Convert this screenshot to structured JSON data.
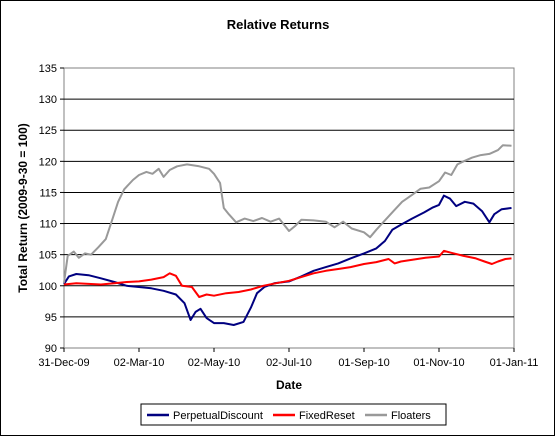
{
  "chart_data": {
    "type": "line",
    "title": "Relative Returns",
    "xlabel": "Date",
    "ylabel": "Total Return (2009-9-30 = 100)",
    "ylim": [
      90,
      135
    ],
    "yticks": [
      90,
      95,
      100,
      105,
      110,
      115,
      120,
      125,
      130,
      135
    ],
    "xlim": [
      "2009-12-31",
      "2011-01-01"
    ],
    "xticks": [
      "31-Dec-09",
      "02-Mar-10",
      "02-May-10",
      "02-Jul-10",
      "01-Sep-10",
      "01-Nov-10",
      "01-Jan-11"
    ],
    "xtick_dates": [
      "2009-12-31",
      "2010-03-02",
      "2010-05-02",
      "2010-07-02",
      "2010-09-01",
      "2010-11-01",
      "2011-01-01"
    ],
    "grid": "horizontal",
    "legend": "bottom",
    "series": [
      {
        "name": "PerpetualDiscount",
        "color": "#000080",
        "points": [
          [
            "2009-12-31",
            100.3
          ],
          [
            "2010-01-04",
            101.5
          ],
          [
            "2010-01-10",
            101.9
          ],
          [
            "2010-01-20",
            101.7
          ],
          [
            "2010-01-30",
            101.2
          ],
          [
            "2010-02-10",
            100.6
          ],
          [
            "2010-02-20",
            100.0
          ],
          [
            "2010-03-02",
            99.8
          ],
          [
            "2010-03-12",
            99.6
          ],
          [
            "2010-03-22",
            99.2
          ],
          [
            "2010-04-01",
            98.6
          ],
          [
            "2010-04-08",
            97.2
          ],
          [
            "2010-04-13",
            94.5
          ],
          [
            "2010-04-17",
            95.8
          ],
          [
            "2010-04-21",
            96.3
          ],
          [
            "2010-04-26",
            94.8
          ],
          [
            "2010-05-02",
            94.0
          ],
          [
            "2010-05-10",
            94.0
          ],
          [
            "2010-05-18",
            93.7
          ],
          [
            "2010-05-26",
            94.2
          ],
          [
            "2010-06-01",
            96.5
          ],
          [
            "2010-06-06",
            98.8
          ],
          [
            "2010-06-12",
            99.8
          ],
          [
            "2010-06-20",
            100.4
          ],
          [
            "2010-07-02",
            100.7
          ],
          [
            "2010-07-12",
            101.5
          ],
          [
            "2010-07-22",
            102.4
          ],
          [
            "2010-08-01",
            103.0
          ],
          [
            "2010-08-11",
            103.6
          ],
          [
            "2010-08-21",
            104.4
          ],
          [
            "2010-09-01",
            105.2
          ],
          [
            "2010-09-11",
            106.0
          ],
          [
            "2010-09-18",
            107.2
          ],
          [
            "2010-09-24",
            109.0
          ],
          [
            "2010-10-01",
            109.8
          ],
          [
            "2010-10-10",
            110.8
          ],
          [
            "2010-10-20",
            111.8
          ],
          [
            "2010-10-27",
            112.6
          ],
          [
            "2010-11-01",
            113.0
          ],
          [
            "2010-11-05",
            114.5
          ],
          [
            "2010-11-10",
            114.0
          ],
          [
            "2010-11-15",
            112.8
          ],
          [
            "2010-11-22",
            113.5
          ],
          [
            "2010-11-29",
            113.2
          ],
          [
            "2010-12-06",
            112.0
          ],
          [
            "2010-12-12",
            110.2
          ],
          [
            "2010-12-16",
            111.5
          ],
          [
            "2010-12-22",
            112.3
          ],
          [
            "2010-12-30",
            112.5
          ]
        ]
      },
      {
        "name": "FixedReset",
        "color": "#ff0000",
        "points": [
          [
            "2009-12-31",
            100.2
          ],
          [
            "2010-01-10",
            100.4
          ],
          [
            "2010-01-20",
            100.3
          ],
          [
            "2010-01-30",
            100.2
          ],
          [
            "2010-02-10",
            100.4
          ],
          [
            "2010-02-20",
            100.6
          ],
          [
            "2010-03-02",
            100.7
          ],
          [
            "2010-03-12",
            101.0
          ],
          [
            "2010-03-22",
            101.4
          ],
          [
            "2010-03-27",
            102.0
          ],
          [
            "2010-04-01",
            101.6
          ],
          [
            "2010-04-06",
            100.0
          ],
          [
            "2010-04-14",
            99.8
          ],
          [
            "2010-04-20",
            98.2
          ],
          [
            "2010-04-26",
            98.6
          ],
          [
            "2010-05-02",
            98.4
          ],
          [
            "2010-05-12",
            98.8
          ],
          [
            "2010-05-22",
            99.0
          ],
          [
            "2010-06-01",
            99.4
          ],
          [
            "2010-06-11",
            100.0
          ],
          [
            "2010-06-21",
            100.4
          ],
          [
            "2010-07-02",
            100.8
          ],
          [
            "2010-07-12",
            101.4
          ],
          [
            "2010-07-22",
            102.0
          ],
          [
            "2010-08-01",
            102.4
          ],
          [
            "2010-08-11",
            102.7
          ],
          [
            "2010-08-21",
            103.0
          ],
          [
            "2010-09-01",
            103.5
          ],
          [
            "2010-09-11",
            103.8
          ],
          [
            "2010-09-21",
            104.3
          ],
          [
            "2010-09-26",
            103.6
          ],
          [
            "2010-10-01",
            103.9
          ],
          [
            "2010-10-11",
            104.2
          ],
          [
            "2010-10-21",
            104.5
          ],
          [
            "2010-11-01",
            104.7
          ],
          [
            "2010-11-05",
            105.6
          ],
          [
            "2010-11-11",
            105.3
          ],
          [
            "2010-11-21",
            104.8
          ],
          [
            "2010-12-01",
            104.4
          ],
          [
            "2010-12-08",
            103.9
          ],
          [
            "2010-12-14",
            103.5
          ],
          [
            "2010-12-19",
            103.9
          ],
          [
            "2010-12-25",
            104.3
          ],
          [
            "2010-12-30",
            104.4
          ]
        ]
      },
      {
        "name": "Floaters",
        "color": "#999999",
        "points": [
          [
            "2009-12-31",
            100.5
          ],
          [
            "2010-01-03",
            104.8
          ],
          [
            "2010-01-08",
            105.5
          ],
          [
            "2010-01-12",
            104.5
          ],
          [
            "2010-01-17",
            105.2
          ],
          [
            "2010-01-22",
            105.0
          ],
          [
            "2010-01-28",
            106.2
          ],
          [
            "2010-02-03",
            107.5
          ],
          [
            "2010-02-08",
            110.5
          ],
          [
            "2010-02-13",
            113.5
          ],
          [
            "2010-02-18",
            115.5
          ],
          [
            "2010-02-25",
            117.0
          ],
          [
            "2010-03-02",
            117.8
          ],
          [
            "2010-03-08",
            118.3
          ],
          [
            "2010-03-13",
            118.0
          ],
          [
            "2010-03-18",
            118.8
          ],
          [
            "2010-03-22",
            117.5
          ],
          [
            "2010-03-27",
            118.6
          ],
          [
            "2010-04-02",
            119.2
          ],
          [
            "2010-04-10",
            119.5
          ],
          [
            "2010-04-20",
            119.2
          ],
          [
            "2010-04-28",
            118.8
          ],
          [
            "2010-05-02",
            118.0
          ],
          [
            "2010-05-07",
            116.5
          ],
          [
            "2010-05-10",
            112.5
          ],
          [
            "2010-05-14",
            111.5
          ],
          [
            "2010-05-20",
            110.2
          ],
          [
            "2010-05-27",
            110.8
          ],
          [
            "2010-06-03",
            110.4
          ],
          [
            "2010-06-10",
            110.9
          ],
          [
            "2010-06-17",
            110.3
          ],
          [
            "2010-06-24",
            110.8
          ],
          [
            "2010-07-02",
            108.8
          ],
          [
            "2010-07-07",
            109.6
          ],
          [
            "2010-07-12",
            110.6
          ],
          [
            "2010-07-22",
            110.5
          ],
          [
            "2010-08-01",
            110.3
          ],
          [
            "2010-08-08",
            109.4
          ],
          [
            "2010-08-15",
            110.3
          ],
          [
            "2010-08-22",
            109.2
          ],
          [
            "2010-09-01",
            108.6
          ],
          [
            "2010-09-06",
            107.8
          ],
          [
            "2010-09-11",
            109.0
          ],
          [
            "2010-09-18",
            110.5
          ],
          [
            "2010-09-25",
            112.0
          ],
          [
            "2010-10-02",
            113.5
          ],
          [
            "2010-10-10",
            114.6
          ],
          [
            "2010-10-17",
            115.6
          ],
          [
            "2010-10-24",
            115.8
          ],
          [
            "2010-11-01",
            116.8
          ],
          [
            "2010-11-06",
            118.2
          ],
          [
            "2010-11-11",
            117.8
          ],
          [
            "2010-11-16",
            119.5
          ],
          [
            "2010-11-21",
            120.0
          ],
          [
            "2010-11-28",
            120.6
          ],
          [
            "2010-12-05",
            121.0
          ],
          [
            "2010-12-12",
            121.2
          ],
          [
            "2010-12-19",
            121.8
          ],
          [
            "2010-12-23",
            122.6
          ],
          [
            "2010-12-30",
            122.5
          ]
        ]
      }
    ]
  }
}
